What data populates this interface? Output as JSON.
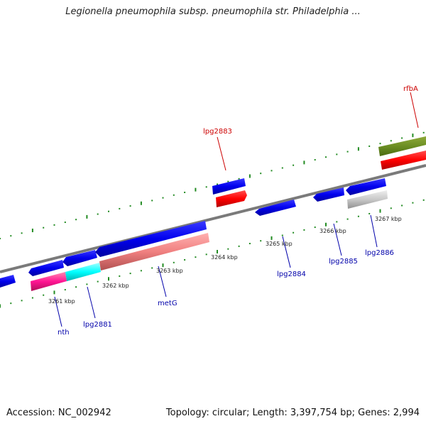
{
  "title": "Legionella pneumophila subsp. pneumophila str. Philadelphia ...",
  "footer": {
    "accession": "Accession: NC_002942",
    "topology": "Topology: circular; Length: 3,397,754 bp; Genes: 2,994"
  },
  "colors": {
    "backbone": "#7a7a7a",
    "tick": "#228b22",
    "forward_label": "#cc0000",
    "reverse_label": "#0000aa"
  },
  "kbp_labels": [
    {
      "text": "3261 kbp"
    },
    {
      "text": "3262 kbp"
    },
    {
      "text": "3263 kbp"
    },
    {
      "text": "3264 kbp"
    },
    {
      "text": "3265 kbp"
    },
    {
      "text": "3266 kbp"
    },
    {
      "text": "3267 kbp"
    }
  ],
  "gene_labels": [
    {
      "text": "lpg2883",
      "strand": "forward"
    },
    {
      "text": "rfbA",
      "strand": "forward"
    },
    {
      "text": "nth",
      "strand": "reverse"
    },
    {
      "text": "lpg2881",
      "strand": "reverse"
    },
    {
      "text": "metG",
      "strand": "reverse"
    },
    {
      "text": "lpg2884",
      "strand": "reverse"
    },
    {
      "text": "lpg2885",
      "strand": "reverse"
    },
    {
      "text": "lpg2886",
      "strand": "reverse"
    }
  ]
}
